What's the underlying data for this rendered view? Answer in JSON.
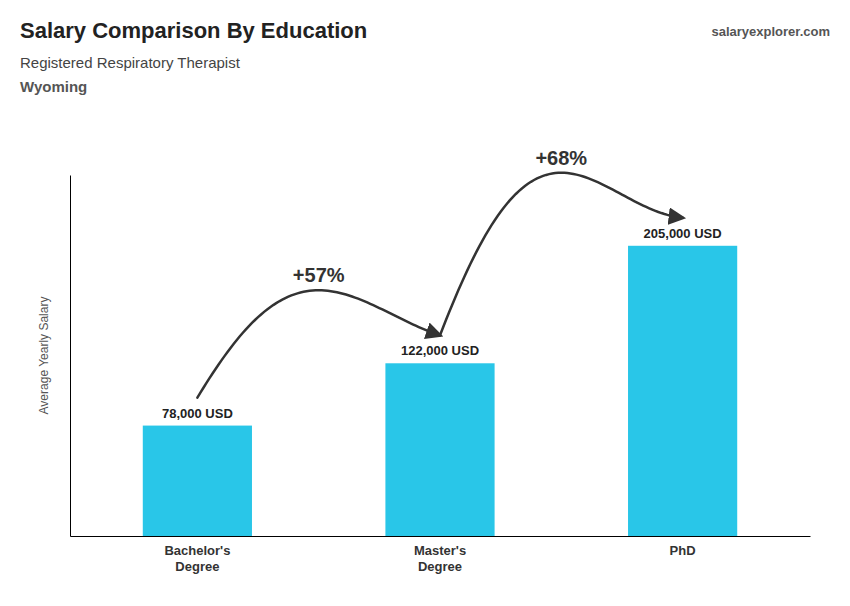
{
  "chart_data": {
    "type": "bar",
    "title": "Salary Comparison By Education",
    "subtitle": [
      "Registered Respiratory Therapist",
      "Wyoming"
    ],
    "ylabel": "Average Yearly Salary",
    "categories": [
      "Bachelor's\nDegree",
      "Master's\nDegree",
      "PhD"
    ],
    "values": [
      78000,
      122000,
      205000
    ],
    "value_labels": [
      "78,000 USD",
      "122,000 USD",
      "205,000 USD"
    ],
    "color": "#29C6E8",
    "ylim": [
      0,
      255000
    ],
    "data_labels": true,
    "tick_labels": "x",
    "grid": false,
    "annotations": [
      "+57%",
      "+68%",
      "salaryexplorer.com"
    ]
  }
}
